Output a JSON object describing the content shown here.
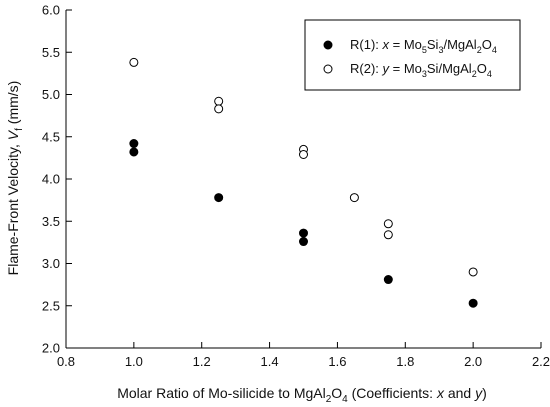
{
  "chart_data": {
    "type": "scatter",
    "xlim": [
      0.8,
      2.2
    ],
    "ylim": [
      2.0,
      6.0
    ],
    "x_ticks": [
      "0.8",
      "1.0",
      "1.2",
      "1.4",
      "1.6",
      "1.8",
      "2.0",
      "2.2"
    ],
    "y_ticks": [
      "2.0",
      "2.5",
      "3.0",
      "3.5",
      "4.0",
      "4.5",
      "5.0",
      "5.5",
      "6.0"
    ],
    "xlabel": {
      "prefix": "Molar Ratio of Mo-silicide to MgAl",
      "sub": "2",
      "mid": "O",
      "sub2": "4",
      "suffix": " (Coefficients: ",
      "var1": "x",
      "and": " and ",
      "var2": "y",
      "close": ")"
    },
    "ylabel": {
      "prefix": "Flame-Front Velocity, ",
      "var": "V",
      "sub": "f",
      "suffix": " (mm/s)"
    },
    "grid": false,
    "legend_position": "top-right",
    "series": [
      {
        "name": "R(1): x = Mo5Si3/MgAl2O4",
        "marker": "filled-circle",
        "color": "#000000",
        "points": [
          [
            1.0,
            4.42
          ],
          [
            1.0,
            4.32
          ],
          [
            1.25,
            3.78
          ],
          [
            1.5,
            3.36
          ],
          [
            1.5,
            3.26
          ],
          [
            1.75,
            2.81
          ],
          [
            2.0,
            2.53
          ]
        ]
      },
      {
        "name": "R(2): y = Mo3Si/MgAl2O4",
        "marker": "open-circle",
        "color": "#000000",
        "points": [
          [
            1.0,
            5.38
          ],
          [
            1.25,
            4.92
          ],
          [
            1.25,
            4.83
          ],
          [
            1.5,
            4.35
          ],
          [
            1.5,
            4.29
          ],
          [
            1.65,
            3.78
          ],
          [
            1.75,
            3.47
          ],
          [
            1.75,
            3.34
          ],
          [
            2.0,
            2.9
          ]
        ]
      }
    ],
    "legend": [
      {
        "label": "R(1): ",
        "var": "x",
        "eq": " = Mo",
        "s1": "5",
        "t1": "Si",
        "s2": "3",
        "t2": "/MgAl",
        "s3": "2",
        "t3": "O",
        "s4": "4"
      },
      {
        "label": "R(2): ",
        "var": "y",
        "eq": " = Mo",
        "s1": "3",
        "t1": "Si",
        "s2": "",
        "t2": "/MgAl",
        "s3": "2",
        "t3": "O",
        "s4": "4"
      }
    ]
  }
}
